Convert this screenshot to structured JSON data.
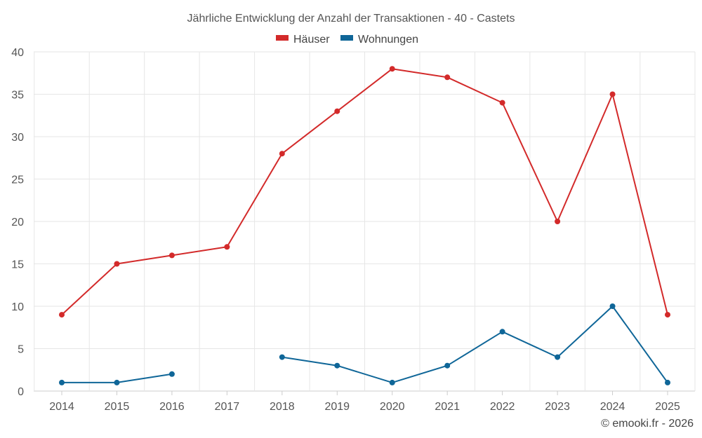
{
  "chart_data": {
    "type": "line",
    "title": "Jährliche Entwicklung der Anzahl der Transaktionen - 40 - Castets",
    "categories": [
      "2014",
      "2015",
      "2016",
      "2017",
      "2018",
      "2019",
      "2020",
      "2021",
      "2022",
      "2023",
      "2024",
      "2025"
    ],
    "series": [
      {
        "name": "Häuser",
        "color": "#d32a2a",
        "values": [
          9,
          15,
          16,
          17,
          28,
          33,
          38,
          37,
          34,
          20,
          35,
          9
        ]
      },
      {
        "name": "Wohnungen",
        "color": "#0f6698",
        "values": [
          1,
          1,
          2,
          null,
          4,
          3,
          1,
          3,
          7,
          4,
          10,
          1
        ]
      }
    ],
    "y_ticks": [
      "0",
      "5",
      "10",
      "15",
      "20",
      "25",
      "30",
      "35",
      "40"
    ],
    "ylim": [
      0,
      40
    ],
    "grid": true,
    "legend_position": "top-center"
  },
  "footer": {
    "credit": "© emooki.fr - 2026"
  }
}
